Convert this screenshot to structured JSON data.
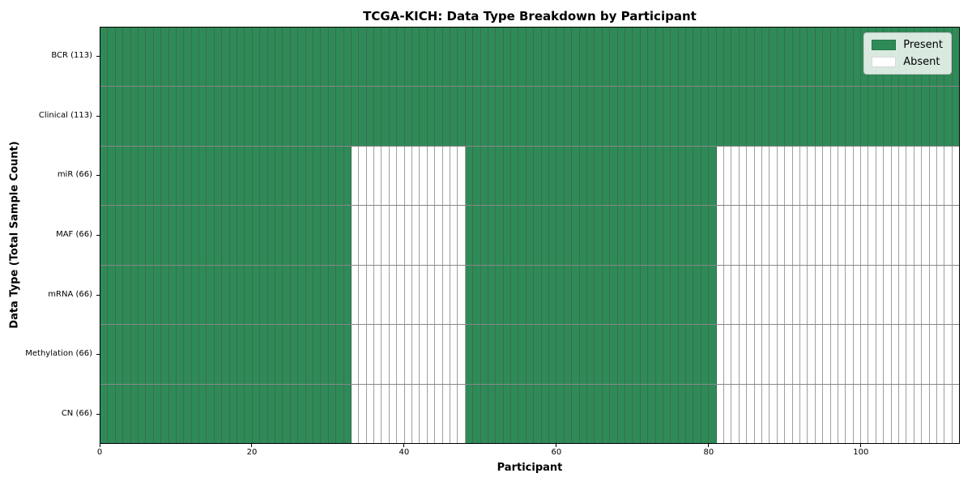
{
  "chart_data": {
    "type": "heatmap",
    "title": "TCGA-KICH: Data Type Breakdown by Participant",
    "xlabel": "Participant",
    "ylabel": "Data Type (Total Sample Count)",
    "x_range": [
      0,
      113
    ],
    "x_ticks": [
      0,
      20,
      40,
      60,
      80,
      100
    ],
    "n_participants": 113,
    "rows": [
      {
        "label": "BCR (113)",
        "total_samples": 113,
        "present_segments": [
          [
            0,
            113
          ]
        ],
        "absent_segments": []
      },
      {
        "label": "Clinical (113)",
        "total_samples": 113,
        "present_segments": [
          [
            0,
            113
          ]
        ],
        "absent_segments": []
      },
      {
        "label": "miR (66)",
        "total_samples": 66,
        "present_segments": [
          [
            0,
            33
          ],
          [
            48,
            81
          ]
        ],
        "absent_segments": [
          [
            33,
            48
          ],
          [
            81,
            113
          ]
        ]
      },
      {
        "label": "MAF (66)",
        "total_samples": 66,
        "present_segments": [
          [
            0,
            33
          ],
          [
            48,
            81
          ]
        ],
        "absent_segments": [
          [
            33,
            48
          ],
          [
            81,
            113
          ]
        ]
      },
      {
        "label": "mRNA (66)",
        "total_samples": 66,
        "present_segments": [
          [
            0,
            33
          ],
          [
            48,
            81
          ]
        ],
        "absent_segments": [
          [
            33,
            48
          ],
          [
            81,
            113
          ]
        ]
      },
      {
        "label": "Methylation (66)",
        "total_samples": 66,
        "present_segments": [
          [
            0,
            33
          ],
          [
            48,
            81
          ]
        ],
        "absent_segments": [
          [
            33,
            48
          ],
          [
            81,
            113
          ]
        ]
      },
      {
        "label": "CN (66)",
        "total_samples": 66,
        "present_segments": [
          [
            0,
            33
          ],
          [
            48,
            81
          ]
        ],
        "absent_segments": [
          [
            33,
            48
          ],
          [
            81,
            113
          ]
        ]
      }
    ],
    "legend": {
      "position": "upper right",
      "entries": [
        {
          "label": "Present",
          "color": "#2e8b57"
        },
        {
          "label": "Absent",
          "color": "#ffffff"
        }
      ]
    },
    "colors": {
      "present": "#2e8b57",
      "absent": "#ffffff",
      "cell_edge": "#6e6e6e",
      "spine": "#000000"
    },
    "grid": "cell-borders"
  }
}
